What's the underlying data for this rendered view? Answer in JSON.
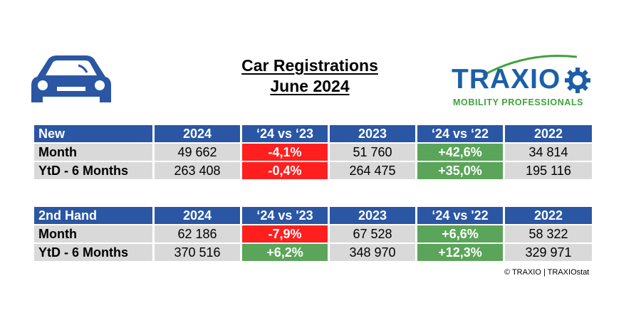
{
  "title": {
    "line1": "Car Registrations",
    "line2": "June 2024"
  },
  "logo": {
    "word": "TRAXIO",
    "tagline": "MOBILITY PROFESSIONALS"
  },
  "colors": {
    "header_blue": "#2a56a4",
    "negative_red": "#ff1f1f",
    "positive_green": "#5aa55a",
    "cell_gray": "#d9d9d9",
    "logo_blue": "#1d5ea8",
    "logo_green": "#3fa33a"
  },
  "icons": {
    "car": "car-front-icon"
  },
  "tables": [
    {
      "headers": [
        "New",
        "2024",
        "‘24 vs ‘23",
        "2023",
        "‘24 vs ‘22",
        "2022"
      ],
      "rows": [
        {
          "label": "Month",
          "v2024": "49 662",
          "d23": "-4,1%",
          "v2023": "51 760",
          "d22": "+42,6%",
          "v2022": "34 814"
        },
        {
          "label": "YtD - 6 Months",
          "v2024": "263 408",
          "d23": "-0,4%",
          "v2023": "264 475",
          "d22": "+35,0%",
          "v2022": "195 116"
        }
      ]
    },
    {
      "headers": [
        "2nd Hand",
        "2024",
        "‘24 vs '23",
        "2023",
        "‘24 vs '22",
        "2022"
      ],
      "rows": [
        {
          "label": "Month",
          "v2024": "62 186",
          "d23": "-7,9%",
          "v2023": "67 528",
          "d22": "+6,6%",
          "v2022": "58 322"
        },
        {
          "label": "YtD - 6 Months",
          "v2024": "370 516",
          "d23": "+6,2%",
          "v2023": "348 970",
          "d22": "+12,3%",
          "v2022": "329 971"
        }
      ]
    }
  ],
  "copyright": "© TRAXIO | TRAXIOstat"
}
